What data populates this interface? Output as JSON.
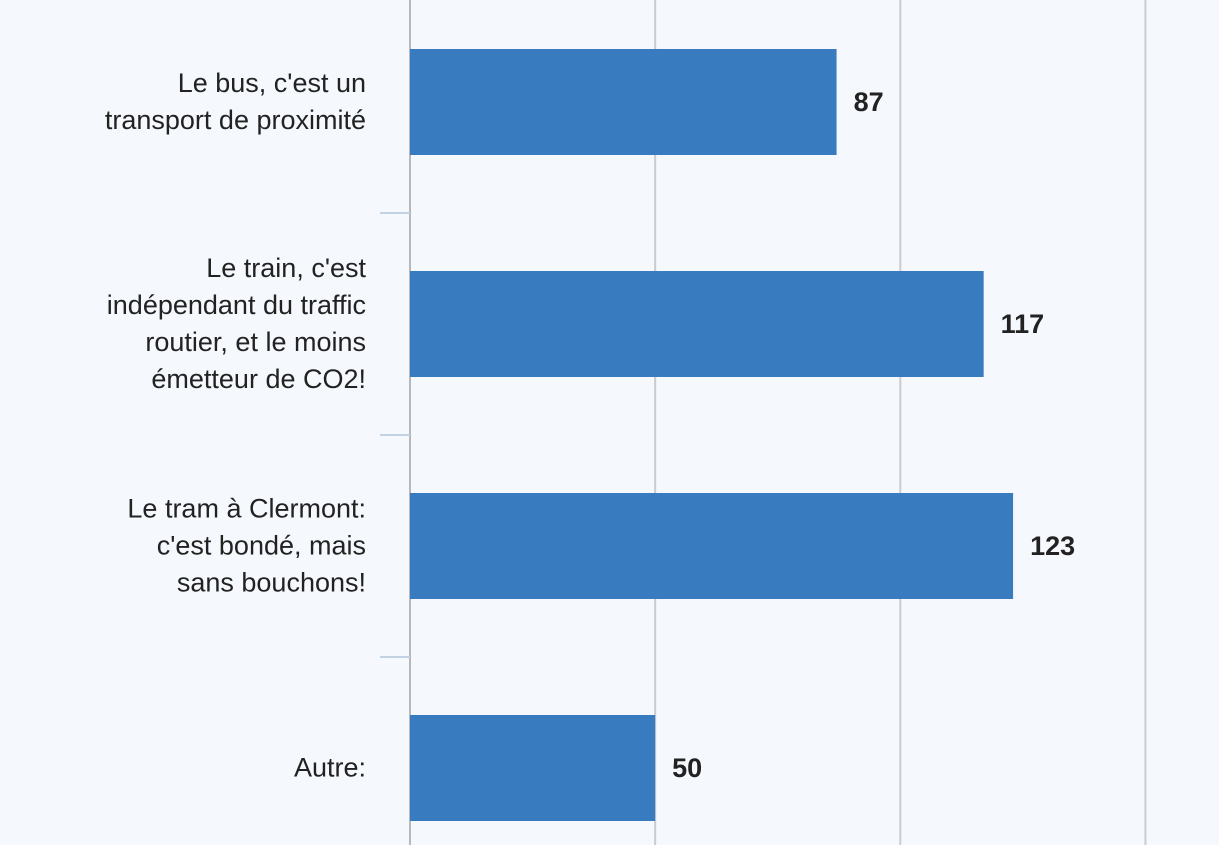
{
  "chart_data": {
    "type": "bar",
    "orientation": "horizontal",
    "categories": [
      "Le bus, c'est un\ntransport de proximité",
      "Le train, c'est\nindépendant du traffic\nroutier, et le moins\németteur de CO2!",
      "Le tram à Clermont:\nc'est bondé, mais\nsans bouchons!",
      "Autre:"
    ],
    "values": [
      87,
      117,
      123,
      50
    ],
    "color": "#387bbf",
    "xlim": [
      0,
      165
    ],
    "xticks": [
      0,
      50,
      100,
      150
    ],
    "grid": true
  }
}
